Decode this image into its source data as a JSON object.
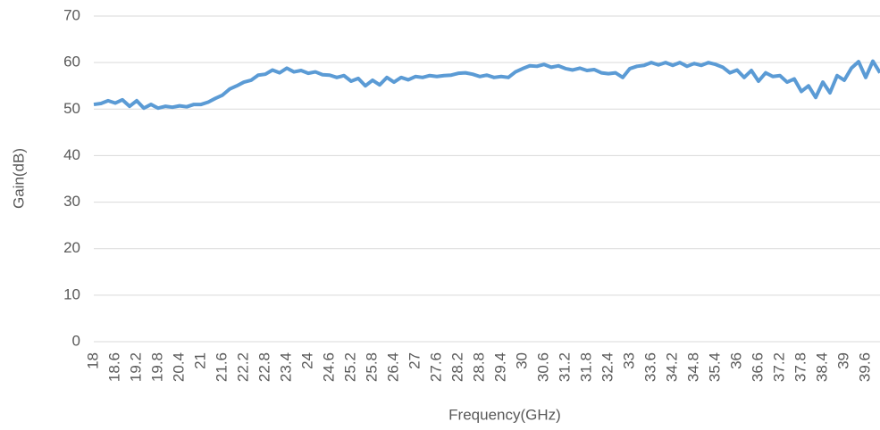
{
  "chart_data": {
    "type": "line",
    "x_label": "Frequency(GHz)",
    "y_label": "Gain(dB)",
    "x": [
      18.0,
      18.2,
      18.4,
      18.6,
      18.8,
      19.0,
      19.2,
      19.4,
      19.6,
      19.8,
      20.0,
      20.2,
      20.4,
      20.6,
      20.8,
      21.0,
      21.2,
      21.4,
      21.6,
      21.8,
      22.0,
      22.2,
      22.4,
      22.6,
      22.8,
      23.0,
      23.2,
      23.4,
      23.6,
      23.8,
      24.0,
      24.2,
      24.4,
      24.6,
      24.8,
      25.0,
      25.2,
      25.4,
      25.6,
      25.8,
      26.0,
      26.2,
      26.4,
      26.6,
      26.8,
      27.0,
      27.2,
      27.4,
      27.6,
      27.8,
      28.0,
      28.2,
      28.4,
      28.6,
      28.8,
      29.0,
      29.2,
      29.4,
      29.6,
      29.8,
      30.0,
      30.2,
      30.4,
      30.6,
      30.8,
      31.0,
      31.2,
      31.4,
      31.6,
      31.8,
      32.0,
      32.2,
      32.4,
      32.6,
      32.8,
      33.0,
      33.2,
      33.4,
      33.6,
      33.8,
      34.0,
      34.2,
      34.4,
      34.6,
      34.8,
      35.0,
      35.2,
      35.4,
      35.6,
      35.8,
      36.0,
      36.2,
      36.4,
      36.6,
      36.8,
      37.0,
      37.2,
      37.4,
      37.6,
      37.8,
      38.0,
      38.2,
      38.4,
      38.6,
      38.8,
      39.0,
      39.2,
      39.4,
      39.6,
      39.8,
      40.0
    ],
    "series": [
      {
        "name": "Gain",
        "color": "#5b9bd5",
        "values": [
          51.0,
          51.2,
          51.8,
          51.3,
          52.0,
          50.6,
          51.8,
          50.2,
          51.0,
          50.2,
          50.6,
          50.4,
          50.7,
          50.5,
          51.0,
          51.0,
          51.5,
          52.3,
          53.0,
          54.3,
          55.0,
          55.8,
          56.2,
          57.3,
          57.5,
          58.4,
          57.8,
          58.8,
          58.0,
          58.3,
          57.7,
          58.0,
          57.4,
          57.3,
          56.8,
          57.2,
          56.0,
          56.6,
          55.0,
          56.2,
          55.2,
          56.8,
          55.8,
          56.8,
          56.3,
          57.0,
          56.8,
          57.2,
          57.0,
          57.2,
          57.3,
          57.7,
          57.8,
          57.5,
          57.0,
          57.3,
          56.8,
          57.0,
          56.8,
          58.0,
          58.7,
          59.3,
          59.2,
          59.6,
          59.0,
          59.3,
          58.7,
          58.4,
          58.8,
          58.3,
          58.5,
          57.8,
          57.6,
          57.8,
          56.8,
          58.7,
          59.2,
          59.4,
          60.0,
          59.5,
          60.0,
          59.4,
          60.0,
          59.2,
          59.8,
          59.4,
          60.0,
          59.6,
          59.0,
          57.8,
          58.4,
          56.8,
          58.3,
          56.0,
          57.8,
          57.0,
          57.2,
          55.8,
          56.5,
          53.8,
          55.0,
          52.5,
          55.8,
          53.5,
          57.2,
          56.2,
          58.8,
          60.2,
          56.8,
          60.3,
          57.8
        ]
      }
    ],
    "xlim": [
      18,
      40
    ],
    "xticks": [
      18,
      18.6,
      19.2,
      19.8,
      20.4,
      21,
      21.6,
      22.2,
      22.8,
      23.4,
      24,
      24.6,
      25.2,
      25.8,
      26.4,
      27,
      27.6,
      28.2,
      28.8,
      29.4,
      30,
      30.6,
      31.2,
      31.8,
      32.4,
      33,
      33.6,
      34.2,
      34.8,
      35.4,
      36,
      36.6,
      37.2,
      37.8,
      38.4,
      39,
      39.6
    ],
    "ylim": [
      0,
      70
    ],
    "yticks": [
      0,
      10,
      20,
      30,
      40,
      50,
      60,
      70
    ],
    "grid": true
  }
}
